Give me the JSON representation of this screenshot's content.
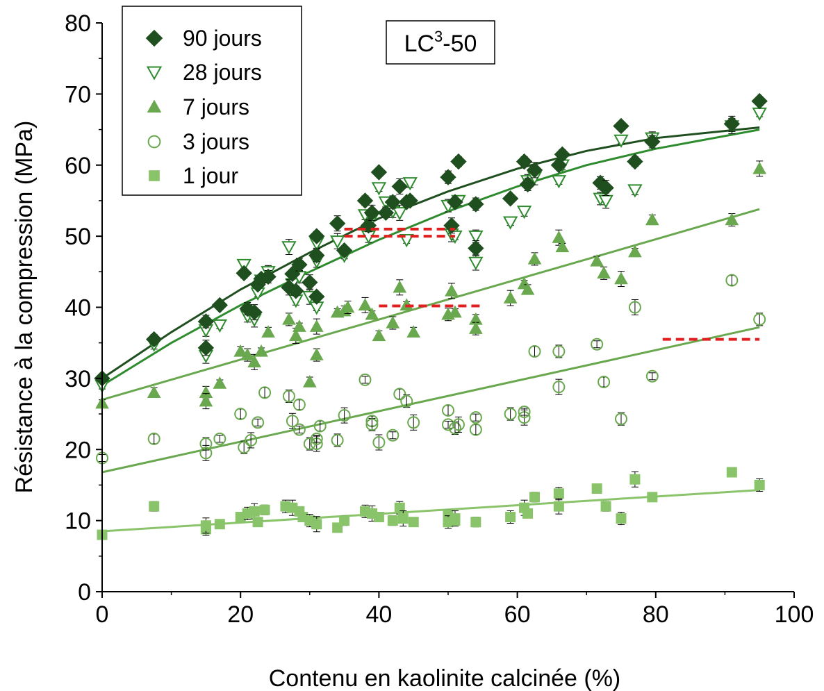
{
  "chart_data": {
    "type": "scatter",
    "xlabel": "Contenu en kaolinite calcinée (%)",
    "ylabel": "Résistance à la compression (MPa)",
    "xlim": [
      0,
      100
    ],
    "ylim": [
      0,
      80
    ],
    "xticks": [
      "0",
      "20",
      "40",
      "60",
      "80",
      "100"
    ],
    "yticks": [
      "0",
      "10",
      "20",
      "30",
      "40",
      "50",
      "60",
      "70",
      "80"
    ],
    "grid": false,
    "legend_position": "top-left",
    "tag": {
      "main": "LC",
      "sup": "3",
      "suffix": "-50"
    },
    "colors": {
      "d90": "#1f4e1f",
      "d28": "#2e8b2e",
      "d7": "#6aa84f",
      "d3": "#6aa84f",
      "d1": "#8ac46a",
      "threshold": "#e02020"
    },
    "series": [
      {
        "name": "90 jours",
        "marker": "diamond",
        "points": [
          [
            0,
            30
          ],
          [
            7.5,
            35.5
          ],
          [
            15,
            38
          ],
          [
            15,
            34.3
          ],
          [
            17,
            40.3
          ],
          [
            20.5,
            44.8
          ],
          [
            21,
            39.8
          ],
          [
            22,
            39.3
          ],
          [
            22.5,
            43.2
          ],
          [
            23,
            44
          ],
          [
            24,
            44.3
          ],
          [
            27,
            42.8
          ],
          [
            27.5,
            44.7
          ],
          [
            28,
            42.3
          ],
          [
            28.5,
            46
          ],
          [
            30,
            43.5
          ],
          [
            31,
            41.5
          ],
          [
            31,
            50
          ],
          [
            31,
            47.3
          ],
          [
            34,
            51.8
          ],
          [
            35,
            48
          ],
          [
            38,
            55
          ],
          [
            38.5,
            51.5
          ],
          [
            39,
            53.3
          ],
          [
            40,
            59
          ],
          [
            41,
            53.3
          ],
          [
            42,
            54.8
          ],
          [
            43,
            57
          ],
          [
            44,
            54.8
          ],
          [
            44.5,
            55
          ],
          [
            50,
            58.3
          ],
          [
            50.5,
            51.5
          ],
          [
            51,
            54.8
          ],
          [
            51.5,
            60.5
          ],
          [
            54,
            54.5
          ],
          [
            54,
            48.3
          ],
          [
            59,
            55.3
          ],
          [
            61,
            60.5
          ],
          [
            61.5,
            57.3
          ],
          [
            62.5,
            59.3
          ],
          [
            66,
            60
          ],
          [
            66.5,
            61.5
          ],
          [
            72,
            57.5
          ],
          [
            72.8,
            56.8
          ],
          [
            75,
            65.5
          ],
          [
            77,
            60.5
          ],
          [
            79.5,
            63.3
          ],
          [
            91,
            65.8
          ],
          [
            95,
            69
          ]
        ],
        "trend": [
          [
            0,
            30
          ],
          [
            10,
            36.5
          ],
          [
            20,
            42.5
          ],
          [
            30,
            47.7
          ],
          [
            40,
            52.5
          ],
          [
            50,
            56.3
          ],
          [
            60,
            59.5
          ],
          [
            70,
            62
          ],
          [
            80,
            63.8
          ],
          [
            95,
            65.3
          ]
        ]
      },
      {
        "name": "28 jours",
        "marker": "triangle-down",
        "points": [
          [
            0,
            29
          ],
          [
            7.5,
            34.8
          ],
          [
            15,
            36.8
          ],
          [
            15,
            33.2
          ],
          [
            17,
            37.5
          ],
          [
            20.5,
            46
          ],
          [
            21,
            38.8
          ],
          [
            22,
            38.3
          ],
          [
            22.5,
            42
          ],
          [
            23,
            43.8
          ],
          [
            24,
            45
          ],
          [
            27,
            48.5
          ],
          [
            27.5,
            43.3
          ],
          [
            28,
            41
          ],
          [
            28.5,
            44.3
          ],
          [
            30,
            41.5
          ],
          [
            31,
            40
          ],
          [
            31,
            49
          ],
          [
            31,
            46.5
          ],
          [
            34,
            49.3
          ],
          [
            35,
            47.3
          ],
          [
            38,
            53
          ],
          [
            38.5,
            50
          ],
          [
            39,
            52.5
          ],
          [
            40,
            56.8
          ],
          [
            41,
            54.8
          ],
          [
            42,
            53.5
          ],
          [
            43,
            53.3
          ],
          [
            44,
            49.5
          ],
          [
            44.5,
            57.5
          ],
          [
            50,
            54.3
          ],
          [
            50.5,
            50.3
          ],
          [
            51,
            50
          ],
          [
            51.5,
            55
          ],
          [
            54,
            50
          ],
          [
            54,
            46.3
          ],
          [
            59,
            52
          ],
          [
            61,
            53.5
          ],
          [
            61.5,
            57.8
          ],
          [
            62.5,
            58.3
          ],
          [
            66,
            57.8
          ],
          [
            66.5,
            60
          ],
          [
            72,
            55.3
          ],
          [
            72.8,
            55
          ],
          [
            75,
            63.5
          ],
          [
            77,
            56.5
          ],
          [
            79.5,
            63.8
          ],
          [
            91,
            65.5
          ],
          [
            95,
            67.3
          ]
        ],
        "trend": [
          [
            0,
            29
          ],
          [
            10,
            35
          ],
          [
            20,
            40.3
          ],
          [
            30,
            45
          ],
          [
            40,
            49.5
          ],
          [
            50,
            53.5
          ],
          [
            60,
            57
          ],
          [
            70,
            60
          ],
          [
            80,
            62.3
          ],
          [
            95,
            65
          ]
        ]
      },
      {
        "name": "7 jours",
        "marker": "triangle-up",
        "points": [
          [
            0,
            26.5
          ],
          [
            7.5,
            28
          ],
          [
            15,
            28
          ],
          [
            15,
            26.8
          ],
          [
            17,
            29.3
          ],
          [
            20,
            33.8
          ],
          [
            21,
            33.3
          ],
          [
            22,
            32.3
          ],
          [
            23,
            33.8
          ],
          [
            24,
            36.5
          ],
          [
            27,
            38.3
          ],
          [
            28,
            36
          ],
          [
            28.5,
            37.3
          ],
          [
            30,
            29.5
          ],
          [
            31,
            33.3
          ],
          [
            31,
            37.3
          ],
          [
            34,
            39.3
          ],
          [
            35,
            39.5
          ],
          [
            35.5,
            40
          ],
          [
            38,
            40.3
          ],
          [
            39,
            39
          ],
          [
            40,
            36
          ],
          [
            42,
            37.8
          ],
          [
            43,
            42.8
          ],
          [
            44,
            40.3
          ],
          [
            45,
            36.5
          ],
          [
            50,
            39
          ],
          [
            50.5,
            42.3
          ],
          [
            51,
            39.3
          ],
          [
            54,
            38.3
          ],
          [
            54,
            37
          ],
          [
            59,
            41.3
          ],
          [
            61,
            43.3
          ],
          [
            61.5,
            42.5
          ],
          [
            62.5,
            46.8
          ],
          [
            66,
            49.8
          ],
          [
            66.5,
            48.5
          ],
          [
            71.5,
            46.5
          ],
          [
            72.5,
            44.8
          ],
          [
            75,
            44
          ],
          [
            77,
            47.8
          ],
          [
            79.5,
            52.3
          ],
          [
            91,
            52.3
          ],
          [
            95,
            59.5
          ]
        ],
        "trend": [
          [
            0,
            27
          ],
          [
            95,
            53.8
          ]
        ]
      },
      {
        "name": "3 jours",
        "marker": "circle-open",
        "points": [
          [
            0,
            18.8
          ],
          [
            7.5,
            21.5
          ],
          [
            15,
            20.8
          ],
          [
            15,
            19.5
          ],
          [
            17,
            21.5
          ],
          [
            20,
            25
          ],
          [
            20.5,
            20.3
          ],
          [
            21.5,
            21.3
          ],
          [
            22.5,
            23.8
          ],
          [
            23.5,
            28
          ],
          [
            27,
            27.5
          ],
          [
            27.5,
            24
          ],
          [
            28.5,
            22.8
          ],
          [
            28.5,
            26.3
          ],
          [
            30,
            20.8
          ],
          [
            31,
            20.8
          ],
          [
            31,
            21.5
          ],
          [
            31.5,
            23.3
          ],
          [
            34,
            21.3
          ],
          [
            35,
            24.8
          ],
          [
            38,
            29.8
          ],
          [
            39,
            24
          ],
          [
            39,
            23.5
          ],
          [
            40,
            21
          ],
          [
            42,
            22
          ],
          [
            43,
            27.8
          ],
          [
            44,
            26.8
          ],
          [
            45,
            23.8
          ],
          [
            50,
            23.5
          ],
          [
            50,
            25.5
          ],
          [
            51,
            23
          ],
          [
            51.5,
            23.5
          ],
          [
            54,
            24.5
          ],
          [
            54,
            22.8
          ],
          [
            59,
            25
          ],
          [
            61,
            24.5
          ],
          [
            61,
            25.3
          ],
          [
            62.5,
            33.8
          ],
          [
            66,
            33.8
          ],
          [
            66,
            28.8
          ],
          [
            71.5,
            34.8
          ],
          [
            72.5,
            29.5
          ],
          [
            75,
            24.3
          ],
          [
            77,
            40
          ],
          [
            79.5,
            30.3
          ],
          [
            91,
            43.8
          ],
          [
            95,
            38.3
          ]
        ],
        "trend": [
          [
            0,
            16.8
          ],
          [
            95,
            37.2
          ]
        ]
      },
      {
        "name": "1 jour",
        "marker": "square",
        "points": [
          [
            0,
            8
          ],
          [
            7.5,
            12
          ],
          [
            15,
            8.8
          ],
          [
            15,
            9.3
          ],
          [
            17,
            9.5
          ],
          [
            20,
            10.5
          ],
          [
            21,
            11
          ],
          [
            22,
            11.3
          ],
          [
            22.5,
            9.8
          ],
          [
            23.5,
            11.5
          ],
          [
            26.5,
            12
          ],
          [
            27.5,
            11.8
          ],
          [
            28.5,
            11.3
          ],
          [
            29,
            10.5
          ],
          [
            30,
            10
          ],
          [
            31,
            9.5
          ],
          [
            34,
            9
          ],
          [
            35,
            10
          ],
          [
            38,
            11.3
          ],
          [
            39,
            11
          ],
          [
            40,
            10.5
          ],
          [
            42,
            10
          ],
          [
            43,
            11.8
          ],
          [
            43.5,
            10.3
          ],
          [
            45,
            9.8
          ],
          [
            50,
            10.8
          ],
          [
            50,
            9.8
          ],
          [
            51,
            10.3
          ],
          [
            51,
            10
          ],
          [
            54,
            9.8
          ],
          [
            59,
            10.5
          ],
          [
            61,
            11.8
          ],
          [
            61.5,
            11
          ],
          [
            62.5,
            13.3
          ],
          [
            66,
            13.8
          ],
          [
            66,
            12
          ],
          [
            71.5,
            14.5
          ],
          [
            72.8,
            12
          ],
          [
            75,
            10.3
          ],
          [
            77,
            15.8
          ],
          [
            79.5,
            13.3
          ],
          [
            91,
            16.8
          ],
          [
            95,
            15
          ]
        ],
        "trend": [
          [
            0,
            8.5
          ],
          [
            95,
            14.3
          ]
        ]
      }
    ],
    "thresholds": [
      {
        "x0": 35,
        "x1": 51,
        "y": 51
      },
      {
        "x0": 35,
        "x1": 51,
        "y": 50
      },
      {
        "x0": 40,
        "x1": 55,
        "y": 40.2
      },
      {
        "x0": 81,
        "x1": 95,
        "y": 35.5
      }
    ]
  }
}
